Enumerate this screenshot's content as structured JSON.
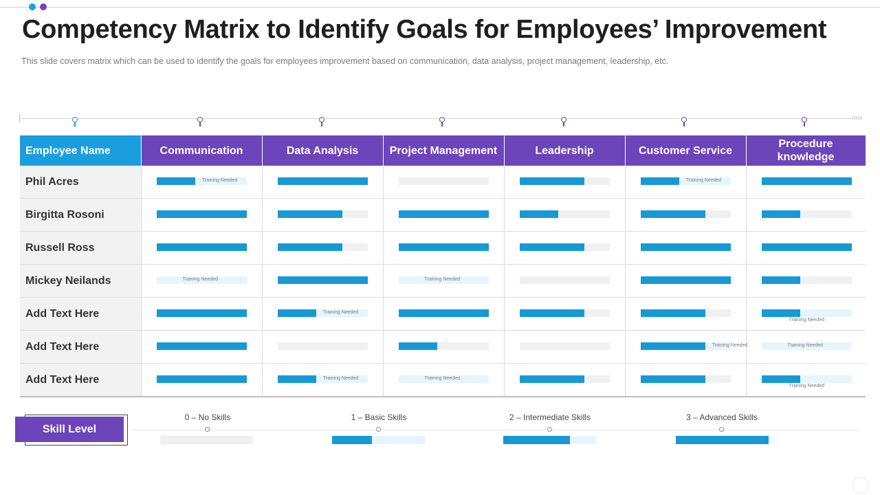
{
  "header": {
    "title": "Competency Matrix to Identify Goals for Employees’ Improvement",
    "subtitle": "This slide covers matrix which can be used to identify the goals for employees improvement  based on communication, data analysis, project management,  leadership, etc."
  },
  "colors": {
    "purple": "#6c45ba",
    "blue": "#1a9ee0",
    "bar": "#1799d6"
  },
  "matrix": {
    "headers": [
      "Employee Name",
      "Communication",
      "Data Analysis",
      "Project Management",
      "Leadership",
      "Customer Service",
      "Procedure knowledge"
    ],
    "note_label": "Training Needed",
    "rows": [
      {
        "name": "Phil Acres",
        "levels": [
          1,
          3,
          0,
          2,
          1,
          3
        ],
        "training_needed": [
          true,
          false,
          false,
          false,
          true,
          false
        ]
      },
      {
        "name": "Birgitta Rosoni",
        "levels": [
          3,
          2,
          3,
          1,
          2,
          1
        ],
        "training_needed": [
          false,
          false,
          false,
          false,
          false,
          false
        ]
      },
      {
        "name": "Russell Ross",
        "levels": [
          3,
          2,
          3,
          2,
          3,
          3
        ],
        "training_needed": [
          false,
          false,
          false,
          false,
          false,
          false
        ]
      },
      {
        "name": "Mickey Neilands",
        "levels": [
          0,
          3,
          0,
          0,
          3,
          1
        ],
        "training_needed": [
          true,
          false,
          true,
          false,
          false,
          false
        ]
      },
      {
        "name": "Add Text Here",
        "levels": [
          3,
          1,
          3,
          2,
          2,
          1
        ],
        "training_needed": [
          false,
          true,
          false,
          false,
          false,
          true
        ]
      },
      {
        "name": "Add Text Here",
        "levels": [
          3,
          0,
          1,
          0,
          2,
          0
        ],
        "training_needed": [
          false,
          false,
          false,
          false,
          true,
          true
        ]
      },
      {
        "name": "Add Text Here",
        "levels": [
          3,
          1,
          0,
          2,
          2,
          1
        ],
        "training_needed": [
          false,
          true,
          true,
          false,
          false,
          true
        ]
      }
    ]
  },
  "legend": {
    "button_label": "Skill Level",
    "items": [
      {
        "label": "0 – No Skills",
        "level": 0
      },
      {
        "label": "1 – Basic Skills",
        "level": 1
      },
      {
        "label": "2 – Intermediate Skills",
        "level": 2
      },
      {
        "label": "3 – Advanced Skills",
        "level": 3
      }
    ]
  }
}
